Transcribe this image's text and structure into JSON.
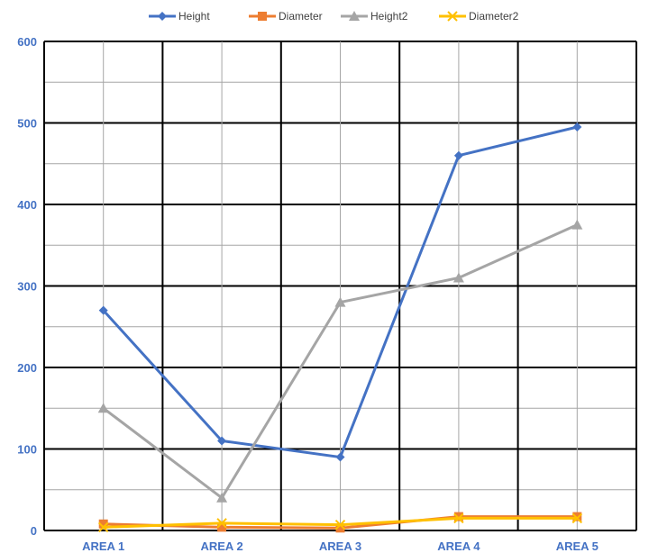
{
  "chart_data": {
    "type": "line",
    "categories": [
      "AREA 1",
      "AREA 2",
      "AREA 3",
      "AREA 4",
      "AREA 5"
    ],
    "ylim": [
      0,
      600
    ],
    "yticks": [
      0,
      100,
      200,
      300,
      400,
      500,
      600
    ],
    "grid": true,
    "legend_position": "top",
    "series": [
      {
        "name": "Height",
        "color": "#4472c4",
        "marker": "diamond",
        "values": [
          270,
          110,
          90,
          460,
          495
        ]
      },
      {
        "name": "Diameter",
        "color": "#ed7d31",
        "marker": "square",
        "values": [
          8,
          4,
          3,
          17,
          17
        ]
      },
      {
        "name": "Height2",
        "color": "#a5a5a5",
        "marker": "triangle",
        "values": [
          150,
          40,
          280,
          310,
          375
        ]
      },
      {
        "name": "Diameter2",
        "color": "#ffc000",
        "marker": "x",
        "values": [
          4,
          9,
          7,
          15,
          15
        ]
      }
    ]
  }
}
